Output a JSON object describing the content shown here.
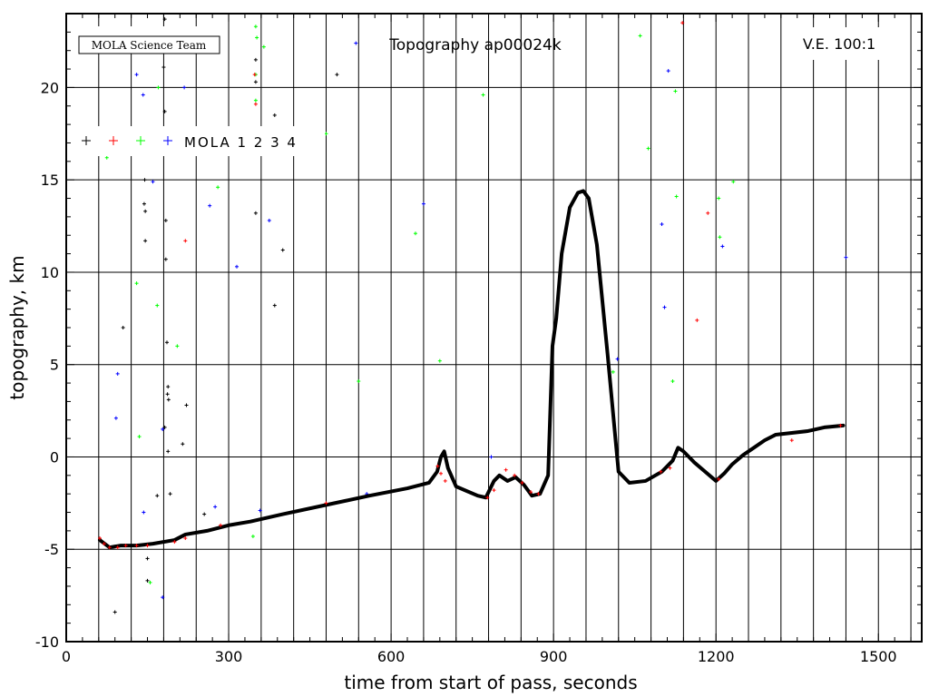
{
  "chart_data": {
    "type": "scatter",
    "title": "Topography ap00024k",
    "xlabel": "time from start of pass, seconds",
    "ylabel": "topography, km",
    "xlim": [
      0,
      1580
    ],
    "ylim": [
      -10,
      24
    ],
    "x_ticks": [
      "0",
      "300",
      "600",
      "900",
      "1200",
      "1500"
    ],
    "x_tick_values": [
      0,
      300,
      600,
      900,
      1200,
      1500
    ],
    "y_ticks": [
      "-10",
      "-5",
      "0",
      "5",
      "10",
      "15",
      "20"
    ],
    "y_tick_values": [
      -10,
      -5,
      0,
      5,
      10,
      15,
      20
    ],
    "grid": true,
    "credit": "MOLA Science Team",
    "annotation": "V.E. 100:1",
    "legend": {
      "label": "MOLA 1 2 3 4",
      "placement": "top-left",
      "entries": [
        {
          "detector": "1",
          "color": "#000000"
        },
        {
          "detector": "2",
          "color": "#ff0000"
        },
        {
          "detector": "3",
          "color": "#00ff00"
        },
        {
          "detector": "4",
          "color": "#0000ff"
        }
      ]
    },
    "profile": {
      "name": "ground track",
      "color": "#000000",
      "x": [
        62,
        80,
        100,
        130,
        160,
        200,
        220,
        260,
        300,
        340,
        400,
        480,
        560,
        630,
        670,
        685,
        692,
        698,
        705,
        720,
        760,
        775,
        790,
        800,
        815,
        830,
        845,
        860,
        875,
        890,
        898,
        905,
        915,
        930,
        945,
        955,
        965,
        980,
        1000,
        1020,
        1040,
        1070,
        1100,
        1120,
        1130,
        1140,
        1160,
        1180,
        1200,
        1215,
        1230,
        1250,
        1270,
        1290,
        1310,
        1340,
        1370,
        1400,
        1435
      ],
      "y": [
        -4.5,
        -4.9,
        -4.8,
        -4.8,
        -4.7,
        -4.5,
        -4.2,
        -4.0,
        -3.7,
        -3.5,
        -3.1,
        -2.6,
        -2.1,
        -1.7,
        -1.4,
        -0.8,
        0.0,
        0.3,
        -0.6,
        -1.6,
        -2.1,
        -2.2,
        -1.3,
        -1.0,
        -1.3,
        -1.1,
        -1.5,
        -2.1,
        -2.0,
        -1.0,
        6.0,
        7.5,
        11.0,
        13.5,
        14.3,
        14.4,
        14.0,
        11.5,
        5.5,
        -0.8,
        -1.4,
        -1.3,
        -0.8,
        -0.2,
        0.5,
        0.3,
        -0.3,
        -0.8,
        -1.3,
        -0.9,
        -0.4,
        0.1,
        0.5,
        0.9,
        1.2,
        1.3,
        1.4,
        1.6,
        1.7
      ]
    },
    "detector2_hits": {
      "x": [
        62,
        70,
        80,
        95,
        110,
        130,
        150,
        200,
        220,
        285,
        480,
        686,
        692,
        700,
        778,
        790,
        812,
        828,
        842,
        858,
        872,
        1098,
        1115,
        1205,
        1340,
        1430,
        1138,
        1185,
        1165,
        348,
        350,
        220
      ],
      "y": [
        -4.4,
        -4.7,
        -4.9,
        -4.9,
        -4.8,
        -4.8,
        -4.8,
        -4.6,
        -4.4,
        -3.7,
        -2.5,
        -0.5,
        -0.9,
        -1.3,
        -2.2,
        -1.8,
        -0.7,
        -1.0,
        -1.4,
        -1.9,
        -2.0,
        -0.8,
        -0.6,
        -1.2,
        0.9,
        1.7,
        23.5,
        13.2,
        7.4,
        20.7,
        19.1,
        11.7
      ]
    },
    "noise": [
      {
        "series": "1",
        "x": 182,
        "y": 23.7
      },
      {
        "series": "1",
        "x": 180,
        "y": 21.1
      },
      {
        "series": "1",
        "x": 182,
        "y": 18.7
      },
      {
        "series": "1",
        "x": 181,
        "y": 16.6
      },
      {
        "series": "1",
        "x": 145,
        "y": 15.0
      },
      {
        "series": "1",
        "x": 144,
        "y": 13.7
      },
      {
        "series": "1",
        "x": 146,
        "y": 13.3
      },
      {
        "series": "1",
        "x": 184,
        "y": 12.8
      },
      {
        "series": "1",
        "x": 146,
        "y": 11.7
      },
      {
        "series": "1",
        "x": 184,
        "y": 10.7
      },
      {
        "series": "1",
        "x": 105,
        "y": 7.0
      },
      {
        "series": "1",
        "x": 186,
        "y": 6.2
      },
      {
        "series": "1",
        "x": 188,
        "y": 3.8
      },
      {
        "series": "1",
        "x": 187,
        "y": 3.4
      },
      {
        "series": "1",
        "x": 189,
        "y": 3.1
      },
      {
        "series": "1",
        "x": 222,
        "y": 2.8
      },
      {
        "series": "1",
        "x": 182,
        "y": 1.6
      },
      {
        "series": "1",
        "x": 215,
        "y": 0.7
      },
      {
        "series": "1",
        "x": 188,
        "y": 0.3
      },
      {
        "series": "1",
        "x": 192,
        "y": -2.0
      },
      {
        "series": "1",
        "x": 168,
        "y": -2.1
      },
      {
        "series": "1",
        "x": 255,
        "y": -3.1
      },
      {
        "series": "1",
        "x": 150,
        "y": -5.5
      },
      {
        "series": "1",
        "x": 150,
        "y": -6.7
      },
      {
        "series": "1",
        "x": 90,
        "y": -8.4
      },
      {
        "series": "1",
        "x": 350,
        "y": 13.2
      },
      {
        "series": "1",
        "x": 385,
        "y": 18.5
      },
      {
        "series": "1",
        "x": 400,
        "y": 11.2
      },
      {
        "series": "1",
        "x": 385,
        "y": 8.2
      },
      {
        "series": "1",
        "x": 350,
        "y": 20.3
      },
      {
        "series": "1",
        "x": 500,
        "y": 20.7
      },
      {
        "series": "1",
        "x": 350,
        "y": 21.5
      },
      {
        "series": "3",
        "x": 75,
        "y": 16.2
      },
      {
        "series": "3",
        "x": 170,
        "y": 20.0
      },
      {
        "series": "3",
        "x": 280,
        "y": 14.6
      },
      {
        "series": "3",
        "x": 130,
        "y": 9.4
      },
      {
        "series": "3",
        "x": 168,
        "y": 8.2
      },
      {
        "series": "3",
        "x": 205,
        "y": 6.0
      },
      {
        "series": "3",
        "x": 135,
        "y": 1.1
      },
      {
        "series": "3",
        "x": 155,
        "y": -6.8
      },
      {
        "series": "3",
        "x": 345,
        "y": -4.3
      },
      {
        "series": "3",
        "x": 350,
        "y": 23.3
      },
      {
        "series": "3",
        "x": 352,
        "y": 22.7
      },
      {
        "series": "3",
        "x": 365,
        "y": 22.2
      },
      {
        "series": "3",
        "x": 350,
        "y": 20.7
      },
      {
        "series": "3",
        "x": 350,
        "y": 19.3
      },
      {
        "series": "3",
        "x": 480,
        "y": 17.5
      },
      {
        "series": "3",
        "x": 540,
        "y": 4.1
      },
      {
        "series": "3",
        "x": 645,
        "y": 12.1
      },
      {
        "series": "3",
        "x": 690,
        "y": 5.2
      },
      {
        "series": "3",
        "x": 770,
        "y": 19.6
      },
      {
        "series": "3",
        "x": 1060,
        "y": 22.8
      },
      {
        "series": "3",
        "x": 1075,
        "y": 16.7
      },
      {
        "series": "3",
        "x": 1125,
        "y": 19.8
      },
      {
        "series": "3",
        "x": 1127,
        "y": 14.1
      },
      {
        "series": "3",
        "x": 1205,
        "y": 14.0
      },
      {
        "series": "3",
        "x": 1207,
        "y": 11.9
      },
      {
        "series": "3",
        "x": 1232,
        "y": 14.9
      },
      {
        "series": "3",
        "x": 1120,
        "y": 4.1
      },
      {
        "series": "3",
        "x": 1010,
        "y": 4.6
      },
      {
        "series": "4",
        "x": 130,
        "y": 20.7
      },
      {
        "series": "4",
        "x": 142,
        "y": 19.6
      },
      {
        "series": "4",
        "x": 160,
        "y": 14.9
      },
      {
        "series": "4",
        "x": 218,
        "y": 20.0
      },
      {
        "series": "4",
        "x": 265,
        "y": 13.6
      },
      {
        "series": "4",
        "x": 315,
        "y": 10.3
      },
      {
        "series": "4",
        "x": 375,
        "y": 12.8
      },
      {
        "series": "4",
        "x": 95,
        "y": 4.5
      },
      {
        "series": "4",
        "x": 92,
        "y": 2.1
      },
      {
        "series": "4",
        "x": 178,
        "y": 1.5
      },
      {
        "series": "4",
        "x": 275,
        "y": -2.7
      },
      {
        "series": "4",
        "x": 143,
        "y": -3.0
      },
      {
        "series": "4",
        "x": 178,
        "y": -7.6
      },
      {
        "series": "4",
        "x": 358,
        "y": -2.9
      },
      {
        "series": "4",
        "x": 535,
        "y": 22.4
      },
      {
        "series": "4",
        "x": 555,
        "y": -2.0
      },
      {
        "series": "4",
        "x": 660,
        "y": 13.7
      },
      {
        "series": "4",
        "x": 785,
        "y": 0.0
      },
      {
        "series": "4",
        "x": 1100,
        "y": 12.6
      },
      {
        "series": "4",
        "x": 1105,
        "y": 8.1
      },
      {
        "series": "4",
        "x": 1112,
        "y": 20.9
      },
      {
        "series": "4",
        "x": 1212,
        "y": 11.4
      },
      {
        "series": "4",
        "x": 1440,
        "y": 10.8
      },
      {
        "series": "4",
        "x": 1018,
        "y": 5.3
      }
    ]
  }
}
